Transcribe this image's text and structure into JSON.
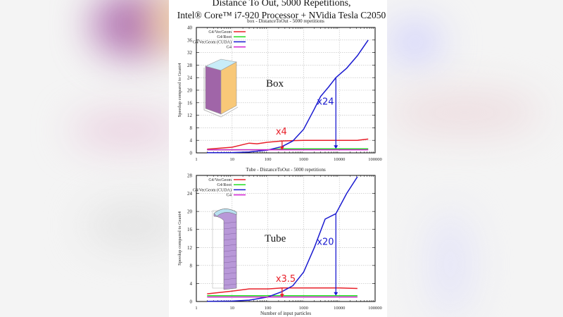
{
  "slide": {
    "title_line1": "Distance To Out, 5000 Repetitions,",
    "title_line2": "Intel® Core™ i7-920 Processor + NVidia Tesla C2050"
  },
  "colors": {
    "vecgeom": "#e8202a",
    "root": "#22dd22",
    "cuda": "#1a1ad0",
    "g4": "#d020d0",
    "annotation_red": "#e8202a",
    "annotation_blue": "#1a1ad0"
  },
  "chart_data": [
    {
      "type": "line",
      "title": "box - DistanceToOut - 5000 repetitions",
      "xlabel": "",
      "ylabel": "Speedup compared to Geant4",
      "xscale": "log",
      "xlim": [
        1,
        100000
      ],
      "ylim": [
        0,
        40
      ],
      "xticks": [
        "1",
        "10",
        "100",
        "1000",
        "10000",
        "100000"
      ],
      "yticks": [
        "0",
        "4",
        "8",
        "12",
        "16",
        "20",
        "24",
        "28",
        "32",
        "36",
        "40"
      ],
      "grid": true,
      "legend_position": "top-left",
      "inset_label": "Box",
      "inset_image": "3D box solid (purple/orange sides, light blue top)",
      "annotations": [
        {
          "text": "x4",
          "color": "red",
          "x": 250,
          "y_from": 3.8,
          "y_to": 0.9
        },
        {
          "text": "x24",
          "color": "blue",
          "x": 8000,
          "y_from": 24,
          "y_to": 1.3
        }
      ],
      "series": [
        {
          "name": "G4/VecGeom",
          "color": "red",
          "x": [
            2,
            10,
            30,
            50,
            100,
            250,
            500,
            1000,
            10000,
            32000,
            64000
          ],
          "values": [
            1.2,
            1.8,
            3.1,
            2.9,
            3.4,
            3.8,
            3.9,
            4.0,
            4.0,
            4.0,
            4.4
          ]
        },
        {
          "name": "G4/Root",
          "color": "green",
          "x": [
            2,
            100,
            250,
            1000,
            10000,
            64000
          ],
          "values": [
            1.0,
            1.0,
            1.3,
            1.3,
            1.3,
            1.3
          ]
        },
        {
          "name": "G4/VecGeom (CUDA)",
          "color": "blue",
          "x": [
            2,
            10,
            30,
            100,
            250,
            500,
            1000,
            2000,
            3000,
            5000,
            8000,
            16000,
            32000,
            64000
          ],
          "values": [
            0.05,
            0.1,
            0.3,
            0.9,
            2.0,
            3.8,
            7.5,
            14,
            18,
            21,
            24,
            27,
            31,
            36
          ]
        },
        {
          "name": "G4",
          "color": "magenta",
          "x": [
            2,
            64000
          ],
          "values": [
            1.0,
            1.0
          ]
        }
      ]
    },
    {
      "type": "line",
      "title": "Tube - DistanceToOut - 5000 repetitions",
      "xlabel": "Number of input particles",
      "ylabel": "Speedup compared to Geant4",
      "xscale": "log",
      "xlim": [
        1,
        100000
      ],
      "ylim": [
        0,
        28
      ],
      "xticks": [
        "1",
        "10",
        "100",
        "1000",
        "10000",
        "100000"
      ],
      "yticks": [
        "0",
        "4",
        "8",
        "12",
        "16",
        "20",
        "24",
        "28"
      ],
      "grid": true,
      "legend_position": "top-left",
      "inset_label": "Tube",
      "inset_image": "3D half-tube solid (purple mesh, light blue top)",
      "annotations": [
        {
          "text": "x3.5",
          "color": "red",
          "x": 250,
          "y_from": 3.0,
          "y_to": 0.9
        },
        {
          "text": "x20",
          "color": "blue",
          "x": 8000,
          "y_from": 19.5,
          "y_to": 1.3
        }
      ],
      "series": [
        {
          "name": "G4/VecGeom",
          "color": "red",
          "x": [
            2,
            10,
            30,
            100,
            250,
            1000,
            10000,
            32000
          ],
          "values": [
            1.7,
            2.3,
            2.8,
            2.8,
            3.0,
            3.0,
            3.0,
            2.9
          ]
        },
        {
          "name": "G4/Root",
          "color": "green",
          "x": [
            2,
            32000
          ],
          "values": [
            1.3,
            1.3
          ]
        },
        {
          "name": "G4/VecGeom (CUDA)",
          "color": "blue",
          "x": [
            2,
            10,
            30,
            100,
            250,
            500,
            1000,
            2000,
            4000,
            8000,
            16000,
            32000
          ],
          "values": [
            0.05,
            0.1,
            0.3,
            1.0,
            2.2,
            3.5,
            6.5,
            12,
            18.3,
            19.5,
            24,
            27.7
          ]
        },
        {
          "name": "G4",
          "color": "magenta",
          "x": [
            2,
            32000
          ],
          "values": [
            1.0,
            1.0
          ]
        }
      ]
    }
  ]
}
